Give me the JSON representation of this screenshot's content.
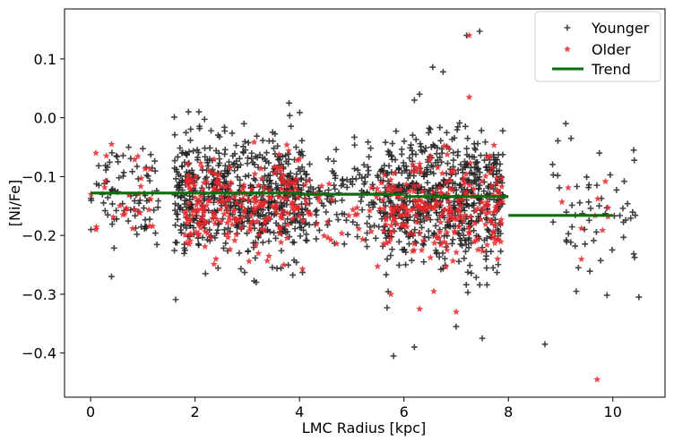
{
  "chart_data": {
    "type": "scatter",
    "xlabel": "LMC Radius [kpc]",
    "ylabel": "[Ni/Fe]",
    "xlim": [
      -0.5,
      11.0
    ],
    "ylim": [
      -0.475,
      0.185
    ],
    "xticks": [
      0,
      2,
      4,
      6,
      8,
      10
    ],
    "xtick_labels": [
      "0",
      "2",
      "4",
      "6",
      "8",
      "10"
    ],
    "yticks": [
      -0.4,
      -0.3,
      -0.2,
      -0.1,
      0.0,
      0.1
    ],
    "ytick_labels": [
      "−0.4",
      "−0.3",
      "−0.2",
      "−0.1",
      "0.0",
      "0.1"
    ],
    "grid": false,
    "legend_position": "top-right",
    "series": [
      {
        "name": "Younger",
        "marker": "plus",
        "color": "#222222",
        "clusters": [
          {
            "x_range": [
              0.0,
              1.3
            ],
            "y_mean": -0.125,
            "y_sd": 0.04,
            "count": 85
          },
          {
            "x_range": [
              1.6,
              4.2
            ],
            "y_mean": -0.135,
            "y_sd": 0.05,
            "count": 650
          },
          {
            "x_range": [
              4.2,
              5.6
            ],
            "y_mean": -0.135,
            "y_sd": 0.04,
            "count": 110
          },
          {
            "x_range": [
              5.6,
              7.9
            ],
            "y_mean": -0.14,
            "y_sd": 0.055,
            "count": 620
          },
          {
            "x_range": [
              8.8,
              10.5
            ],
            "y_mean": -0.155,
            "y_sd": 0.05,
            "count": 55
          }
        ],
        "outliers": [
          {
            "x": 7.45,
            "y": 0.147
          },
          {
            "x": 7.2,
            "y": 0.14
          },
          {
            "x": 6.55,
            "y": 0.086
          },
          {
            "x": 6.75,
            "y": 0.078
          },
          {
            "x": 6.3,
            "y": 0.04
          },
          {
            "x": 6.2,
            "y": 0.03
          },
          {
            "x": 5.8,
            "y": -0.405
          },
          {
            "x": 6.2,
            "y": -0.39
          },
          {
            "x": 7.0,
            "y": -0.355
          },
          {
            "x": 7.5,
            "y": -0.375
          },
          {
            "x": 8.7,
            "y": -0.385
          },
          {
            "x": 10.5,
            "y": -0.305
          },
          {
            "x": 9.3,
            "y": -0.295
          },
          {
            "x": 2.2,
            "y": -0.265
          },
          {
            "x": 0.4,
            "y": -0.27
          },
          {
            "x": 9.1,
            "y": -0.01
          },
          {
            "x": 9.2,
            "y": -0.035
          },
          {
            "x": 10.4,
            "y": -0.055
          },
          {
            "x": 3.8,
            "y": 0.025
          }
        ]
      },
      {
        "name": "Older",
        "marker": "star",
        "color": "#e8262a",
        "clusters": [
          {
            "x_range": [
              0.0,
              1.2
            ],
            "y_mean": -0.14,
            "y_sd": 0.04,
            "count": 28
          },
          {
            "x_range": [
              1.8,
              4.0
            ],
            "y_mean": -0.15,
            "y_sd": 0.04,
            "count": 230
          },
          {
            "x_range": [
              4.0,
              5.6
            ],
            "y_mean": -0.16,
            "y_sd": 0.04,
            "count": 40
          },
          {
            "x_range": [
              5.6,
              7.9
            ],
            "y_mean": -0.16,
            "y_sd": 0.045,
            "count": 230
          },
          {
            "x_range": [
              9.0,
              10.0
            ],
            "y_mean": -0.16,
            "y_sd": 0.04,
            "count": 10
          }
        ],
        "outliers": [
          {
            "x": 7.25,
            "y": 0.14
          },
          {
            "x": 7.25,
            "y": 0.035
          },
          {
            "x": 9.7,
            "y": -0.445
          },
          {
            "x": 6.3,
            "y": -0.325
          },
          {
            "x": 7.0,
            "y": -0.33
          },
          {
            "x": 5.75,
            "y": -0.3
          },
          {
            "x": 3.7,
            "y": -0.25
          },
          {
            "x": 2.4,
            "y": -0.24
          },
          {
            "x": 0.1,
            "y": -0.06
          },
          {
            "x": 0.4,
            "y": -0.045
          }
        ]
      },
      {
        "name": "Trend",
        "marker": "line",
        "color": "#0a6e0a",
        "segments": [
          {
            "x": [
              0.0,
              2.0
            ],
            "y": [
              -0.128,
              -0.128
            ]
          },
          {
            "x": [
              2.0,
              4.0
            ],
            "y": [
              -0.128,
              -0.128
            ]
          },
          {
            "x": [
              4.0,
              6.0
            ],
            "y": [
              -0.13,
              -0.13
            ]
          },
          {
            "x": [
              6.0,
              8.0
            ],
            "y": [
              -0.134,
              -0.134
            ]
          },
          {
            "x": [
              8.0,
              10.0
            ],
            "y": [
              -0.166,
              -0.166
            ]
          }
        ]
      }
    ]
  }
}
